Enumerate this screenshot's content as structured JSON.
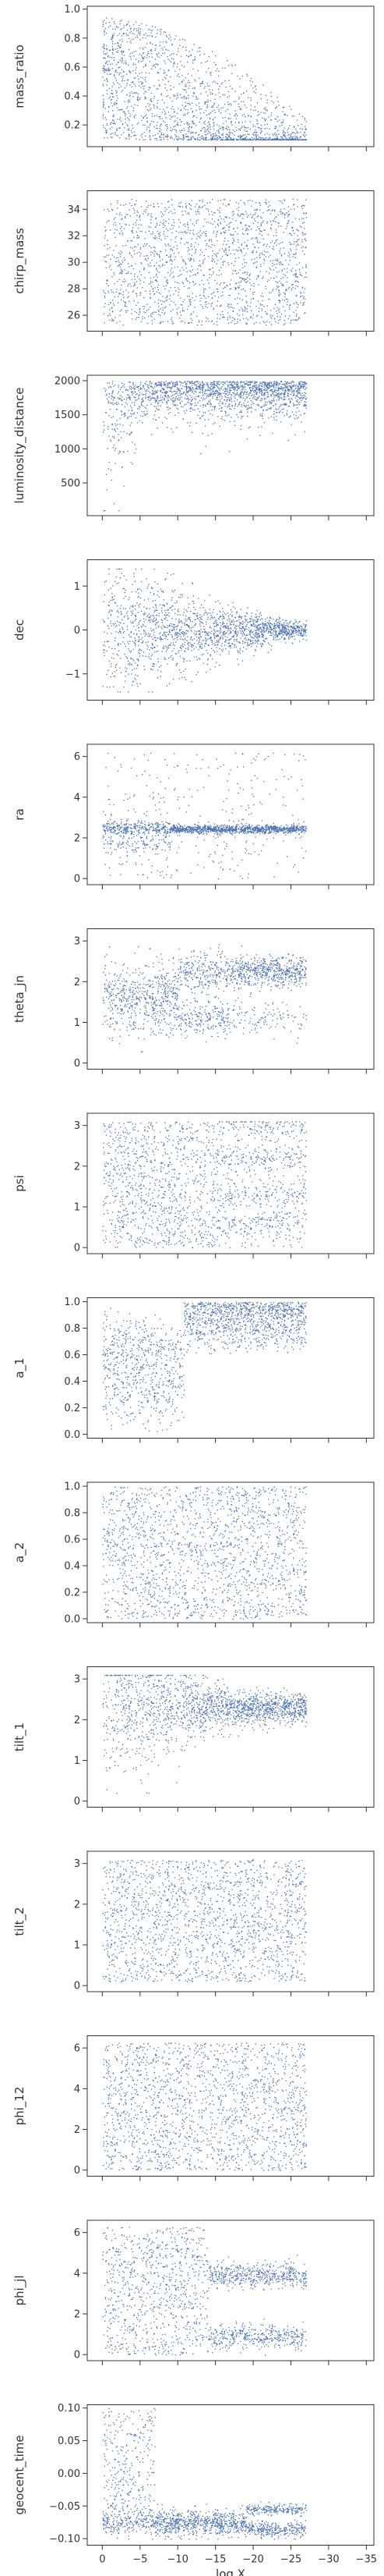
{
  "chart_data": {
    "type": "scatter",
    "shared_xaxis": {
      "label": "log X",
      "lim": [
        2,
        -36
      ],
      "ticks": [
        0,
        -5,
        -10,
        -15,
        -20,
        -25,
        -30,
        -35
      ],
      "tick_labels": [
        "0",
        "−5",
        "−10",
        "−15",
        "−20",
        "−25",
        "−30",
        "−35"
      ]
    },
    "marker_color": "#4c72b0",
    "panels": [
      {
        "ylabel": "mass_ratio",
        "ylim": [
          0.05,
          1.02
        ],
        "yticks": [
          0.2,
          0.4,
          0.6,
          0.8,
          1.0
        ],
        "ytick_labels": [
          "0.2",
          "0.4",
          "0.6",
          "0.8",
          "1.0"
        ]
      },
      {
        "ylabel": "chirp_mass",
        "ylim": [
          24.8,
          35.4
        ],
        "yticks": [
          26,
          28,
          30,
          32,
          34
        ],
        "ytick_labels": [
          "26",
          "28",
          "30",
          "32",
          "34"
        ]
      },
      {
        "ylabel": "luminosity_distance",
        "ylim": [
          20,
          2080
        ],
        "yticks": [
          500,
          1000,
          1500,
          2000
        ],
        "ytick_labels": [
          "500",
          "1000",
          "1500",
          "2000"
        ]
      },
      {
        "ylabel": "dec",
        "ylim": [
          -1.6,
          1.6
        ],
        "yticks": [
          -1,
          0,
          1
        ],
        "ytick_labels": [
          "−1",
          "0",
          "1"
        ]
      },
      {
        "ylabel": "ra",
        "ylim": [
          -0.3,
          6.6
        ],
        "yticks": [
          0,
          2,
          4,
          6
        ],
        "ytick_labels": [
          "0",
          "2",
          "4",
          "6"
        ]
      },
      {
        "ylabel": "theta_jn",
        "ylim": [
          -0.15,
          3.3
        ],
        "yticks": [
          0,
          1,
          2,
          3
        ],
        "ytick_labels": [
          "0",
          "1",
          "2",
          "3"
        ]
      },
      {
        "ylabel": "psi",
        "ylim": [
          -0.15,
          3.3
        ],
        "yticks": [
          0,
          1,
          2,
          3
        ],
        "ytick_labels": [
          "0",
          "1",
          "2",
          "3"
        ]
      },
      {
        "ylabel": "a_1",
        "ylim": [
          -0.03,
          1.03
        ],
        "yticks": [
          0.0,
          0.2,
          0.4,
          0.6,
          0.8,
          1.0
        ],
        "ytick_labels": [
          "0.0",
          "0.2",
          "0.4",
          "0.6",
          "0.8",
          "1.0"
        ]
      },
      {
        "ylabel": "a_2",
        "ylim": [
          -0.03,
          1.03
        ],
        "yticks": [
          0.0,
          0.2,
          0.4,
          0.6,
          0.8,
          1.0
        ],
        "ytick_labels": [
          "0.0",
          "0.2",
          "0.4",
          "0.6",
          "0.8",
          "1.0"
        ]
      },
      {
        "ylabel": "tilt_1",
        "ylim": [
          -0.15,
          3.3
        ],
        "yticks": [
          0,
          1,
          2,
          3
        ],
        "ytick_labels": [
          "0",
          "1",
          "2",
          "3"
        ]
      },
      {
        "ylabel": "tilt_2",
        "ylim": [
          -0.15,
          3.3
        ],
        "yticks": [
          0,
          1,
          2,
          3
        ],
        "ytick_labels": [
          "0",
          "1",
          "2",
          "3"
        ]
      },
      {
        "ylabel": "phi_12",
        "ylim": [
          -0.3,
          6.6
        ],
        "yticks": [
          0,
          2,
          4,
          6
        ],
        "ytick_labels": [
          "0",
          "2",
          "4",
          "6"
        ]
      },
      {
        "ylabel": "phi_jl",
        "ylim": [
          -0.3,
          6.6
        ],
        "yticks": [
          0,
          2,
          4,
          6
        ],
        "ytick_labels": [
          "0",
          "2",
          "4",
          "6"
        ]
      },
      {
        "ylabel": "geocent_time",
        "ylim": [
          -0.11,
          0.105
        ],
        "yticks": [
          -0.1,
          -0.05,
          0.0,
          0.05,
          0.1
        ],
        "ytick_labels": [
          "−0.10",
          "−0.05",
          "0.00",
          "0.05",
          "0.10"
        ]
      }
    ]
  }
}
